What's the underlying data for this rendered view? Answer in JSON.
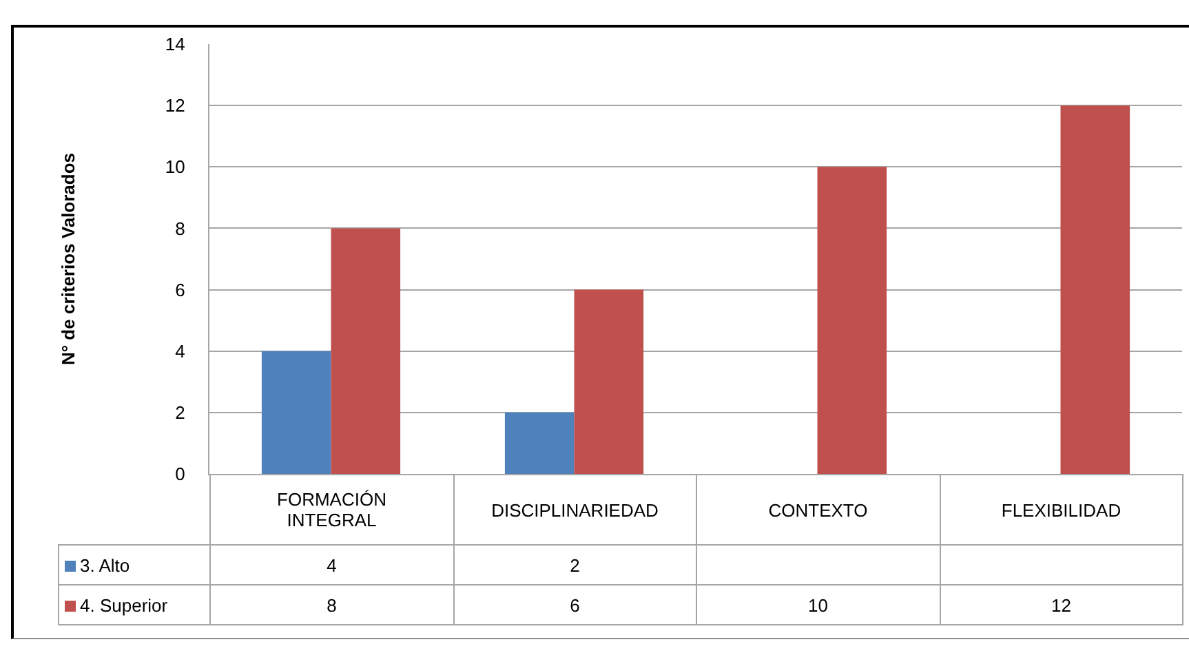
{
  "chart_data": {
    "type": "bar",
    "ylabel": "N° de criterios Valorados",
    "categories": [
      "FORMACIÓN INTEGRAL",
      "DISCIPLINARIEDAD",
      "CONTEXTO",
      "FLEXIBILIDAD"
    ],
    "series": [
      {
        "name": "3. Alto",
        "color": "#4f81bd",
        "values": [
          4,
          2,
          null,
          null
        ]
      },
      {
        "name": "4. Superior",
        "color": "#c0504d",
        "values": [
          8,
          6,
          10,
          12
        ]
      }
    ],
    "ylim": [
      0,
      14
    ],
    "yticks": [
      0,
      2,
      4,
      6,
      8,
      10,
      12,
      14
    ],
    "grid": "y",
    "legend": "bottom left",
    "data_labels": true
  }
}
